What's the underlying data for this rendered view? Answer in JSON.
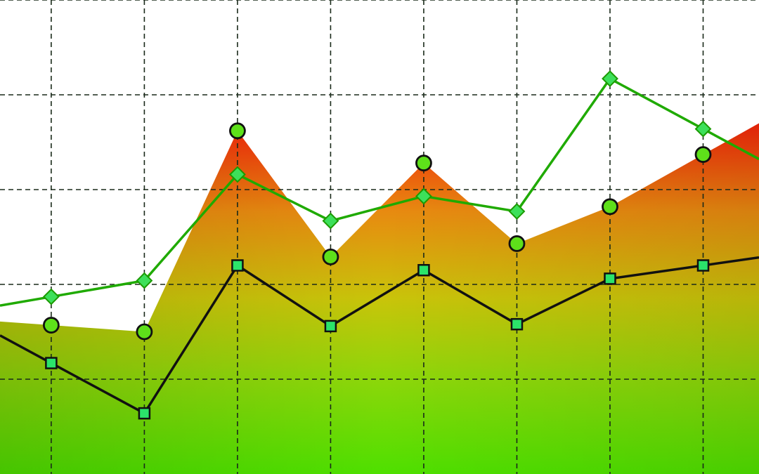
{
  "chart_data": {
    "type": "line",
    "title": "",
    "xlabel": "",
    "ylabel": "",
    "x": [
      1,
      2,
      3,
      4,
      5,
      6,
      7,
      8
    ],
    "xlim": [
      0.45,
      8.6
    ],
    "ylim": [
      0,
      5
    ],
    "grid": true,
    "legend": "none",
    "series": [
      {
        "marker": "diamond",
        "color": "#1faa00",
        "values": [
          1.87,
          2.04,
          3.16,
          2.67,
          2.93,
          2.77,
          4.17,
          3.64
        ]
      },
      {
        "marker": "circle",
        "color": "#4fd000",
        "values": [
          1.57,
          1.5,
          3.62,
          2.29,
          3.28,
          2.43,
          2.82,
          3.37
        ]
      },
      {
        "marker": "square",
        "color": "#111111",
        "values": [
          1.17,
          0.64,
          2.2,
          1.56,
          2.15,
          1.58,
          2.06,
          2.2
        ]
      }
    ],
    "area": {
      "colors": [
        "#f4240a",
        "#e88a10",
        "#c9c40a",
        "#8fd60a",
        "#4ee000"
      ],
      "top": [
        1.57,
        1.5,
        3.62,
        2.29,
        3.28,
        2.43,
        2.82,
        3.37
      ]
    }
  }
}
